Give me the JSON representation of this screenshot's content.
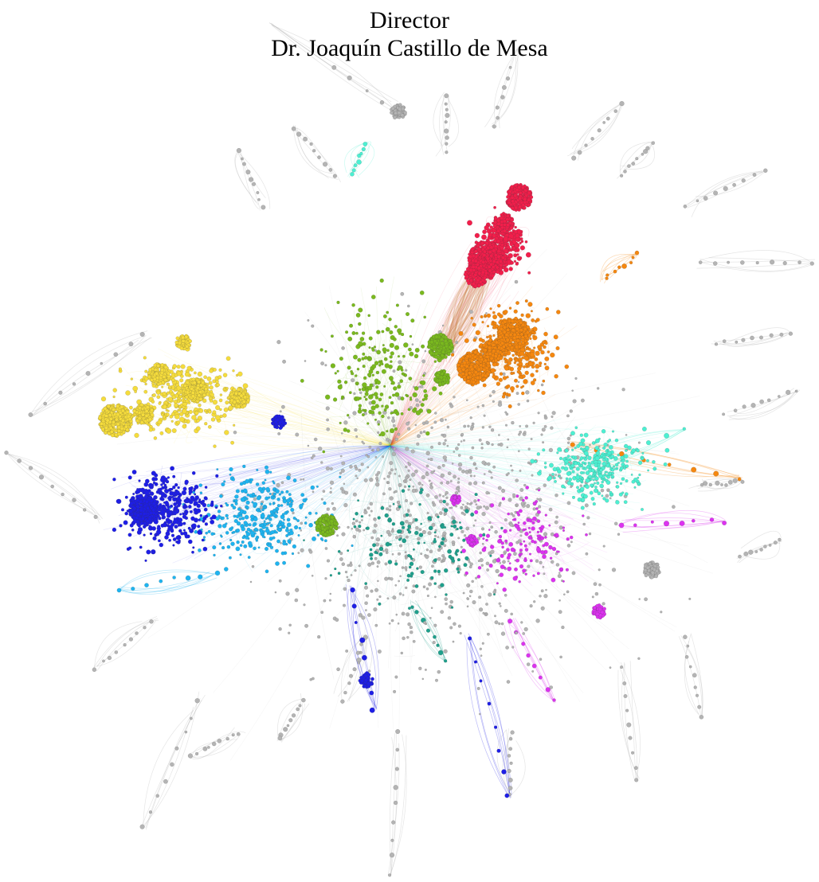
{
  "header": {
    "role": "Director",
    "name": "Dr. Joaquín Castillo de Mesa"
  },
  "network_graph": {
    "type": "force-directed network",
    "community_colors": {
      "gray": "#b4b4b4",
      "red": "#f21e4b",
      "orange": "#f5870f",
      "yellow": "#f5dc3c",
      "green": "#7ab91e",
      "cyan": "#4cf0d2",
      "blue": "#1e1ee6",
      "light_blue": "#1eb4f0",
      "magenta": "#dc32f0",
      "teal": "#1ea08c"
    },
    "communities": [
      {
        "color_key": "red",
        "icon": "node-cluster"
      },
      {
        "color_key": "orange",
        "icon": "node-cluster"
      },
      {
        "color_key": "yellow",
        "icon": "node-cluster"
      },
      {
        "color_key": "green",
        "icon": "node-cluster"
      },
      {
        "color_key": "cyan",
        "icon": "node-cluster"
      },
      {
        "color_key": "blue",
        "icon": "node-cluster"
      },
      {
        "color_key": "light_blue",
        "icon": "node-cluster"
      },
      {
        "color_key": "magenta",
        "icon": "node-cluster"
      },
      {
        "color_key": "teal",
        "icon": "node-cluster"
      },
      {
        "color_key": "gray",
        "icon": "node-cluster"
      }
    ]
  }
}
